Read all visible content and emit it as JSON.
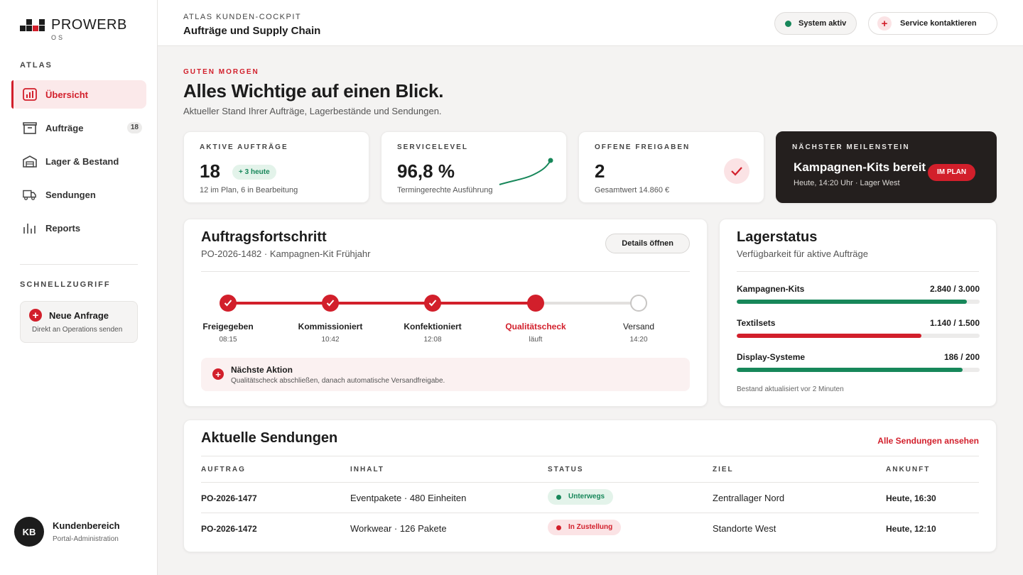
{
  "brand": {
    "name": "PROWERB",
    "sub": "OS"
  },
  "sidebar": {
    "section_label": "ATLAS",
    "items": [
      {
        "label": "Übersicht",
        "icon": "chart-icon",
        "active": true
      },
      {
        "label": "Aufträge",
        "icon": "box-icon",
        "badge": "18"
      },
      {
        "label": "Lager & Bestand",
        "icon": "warehouse-icon"
      },
      {
        "label": "Sendungen",
        "icon": "truck-icon"
      },
      {
        "label": "Reports",
        "icon": "bars-icon"
      }
    ],
    "quick_label": "SCHNELLZUGRIFF",
    "quick": {
      "title": "Neue Anfrage",
      "sub": "Direkt an Operations senden"
    },
    "user": {
      "initials": "KB",
      "name": "Kundenbereich",
      "role": "Portal-Administration"
    }
  },
  "header": {
    "sub": "ATLAS KUNDEN-COCKPIT",
    "title": "Aufträge und Supply Chain",
    "status": "System aktiv",
    "service": "Service kontaktieren"
  },
  "greeting": {
    "kicker": "GUTEN MORGEN",
    "title": "Alles Wichtige auf einen Blick.",
    "sub": "Aktueller Stand Ihrer Aufträge, Lagerbestände und Sendungen."
  },
  "kpis": {
    "orders": {
      "label": "AKTIVE AUFTRÄGE",
      "value": "18",
      "chip": "+ 3 heute",
      "sub": "12 im Plan, 6 in Bearbeitung"
    },
    "service": {
      "label": "SERVICELEVEL",
      "value": "96,8 %",
      "sub": "Termingerechte Ausführung"
    },
    "approvals": {
      "label": "OFFENE FREIGABEN",
      "value": "2",
      "sub": "Gesamtwert 14.860 €"
    },
    "milestone": {
      "label": "NÄCHSTER MEILENSTEIN",
      "title": "Kampagnen-Kits bereit",
      "sub": "Heute, 14:20 Uhr · Lager West",
      "badge": "IM PLAN"
    }
  },
  "progress": {
    "title": "Auftragsfortschritt",
    "sub": "PO-2026-1482 · Kampagnen-Kit Frühjahr",
    "button": "Details öffnen",
    "completion": 0.75,
    "steps": [
      {
        "name": "Freigegeben",
        "time": "08:15",
        "state": "done"
      },
      {
        "name": "Kommissioniert",
        "time": "10:42",
        "state": "done"
      },
      {
        "name": "Konfektioniert",
        "time": "12:08",
        "state": "done"
      },
      {
        "name": "Qualitätscheck",
        "time": "läuft",
        "state": "current"
      },
      {
        "name": "Versand",
        "time": "14:20",
        "state": "todo"
      }
    ],
    "next": {
      "title": "Nächste Aktion",
      "sub": "Qualitätscheck abschließen, danach automatische Versandfreigabe."
    }
  },
  "stock": {
    "title": "Lagerstatus",
    "sub": "Verfügbarkeit für aktive Aufträge",
    "items": [
      {
        "name": "Kampagnen-Kits",
        "value": "2.840 / 3.000",
        "fill": 0.947,
        "color": "#17875a"
      },
      {
        "name": "Textilsets",
        "value": "1.140 / 1.500",
        "fill": 0.76,
        "color": "#d21f2b"
      },
      {
        "name": "Display-Systeme",
        "value": "186 / 200",
        "fill": 0.93,
        "color": "#17875a"
      }
    ],
    "note": "Bestand aktualisiert vor 2 Minuten"
  },
  "shipments": {
    "title": "Aktuelle Sendungen",
    "link": "Alle Sendungen ansehen",
    "headers": [
      "AUFTRAG",
      "INHALT",
      "STATUS",
      "ZIEL",
      "ANKUNFT"
    ],
    "rows": [
      {
        "order": "PO-2026-1477",
        "content": "Eventpakete · 480 Einheiten",
        "status": "Unterwegs",
        "tone": "green",
        "target": "Zentrallager Nord",
        "arrival": "Heute, 16:30"
      },
      {
        "order": "PO-2026-1472",
        "content": "Workwear · 126 Pakete",
        "status": "In Zustellung",
        "tone": "red",
        "target": "Standorte West",
        "arrival": "Heute, 12:10"
      }
    ]
  },
  "colors": {
    "accent": "#d21f2b",
    "success": "#17875a",
    "dark": "#241f1e"
  }
}
